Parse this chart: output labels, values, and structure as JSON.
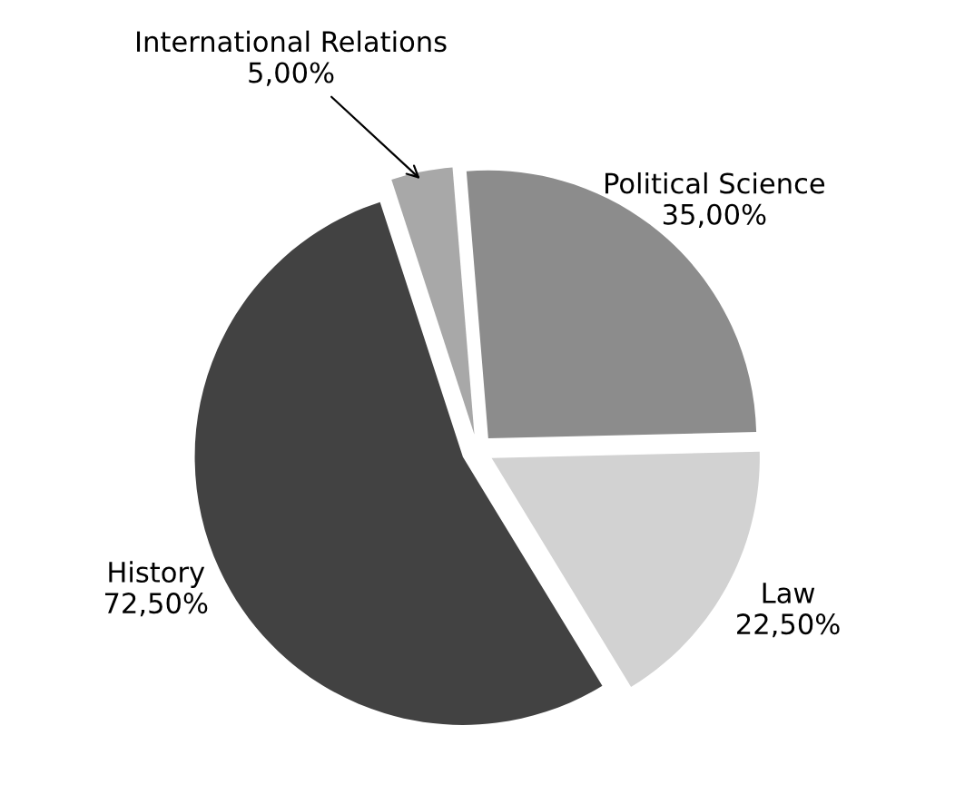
{
  "chart_data": {
    "type": "pie",
    "categories": [
      "International Relations",
      "Political Science",
      "Law",
      "History"
    ],
    "values": [
      5,
      35,
      22.5,
      72.5
    ],
    "value_labels": [
      "5,00%",
      "35,00%",
      "22,50%",
      "72,50%"
    ],
    "colors": [
      "#a8a8a8",
      "#8c8c8c",
      "#d2d2d2",
      "#424242"
    ]
  }
}
